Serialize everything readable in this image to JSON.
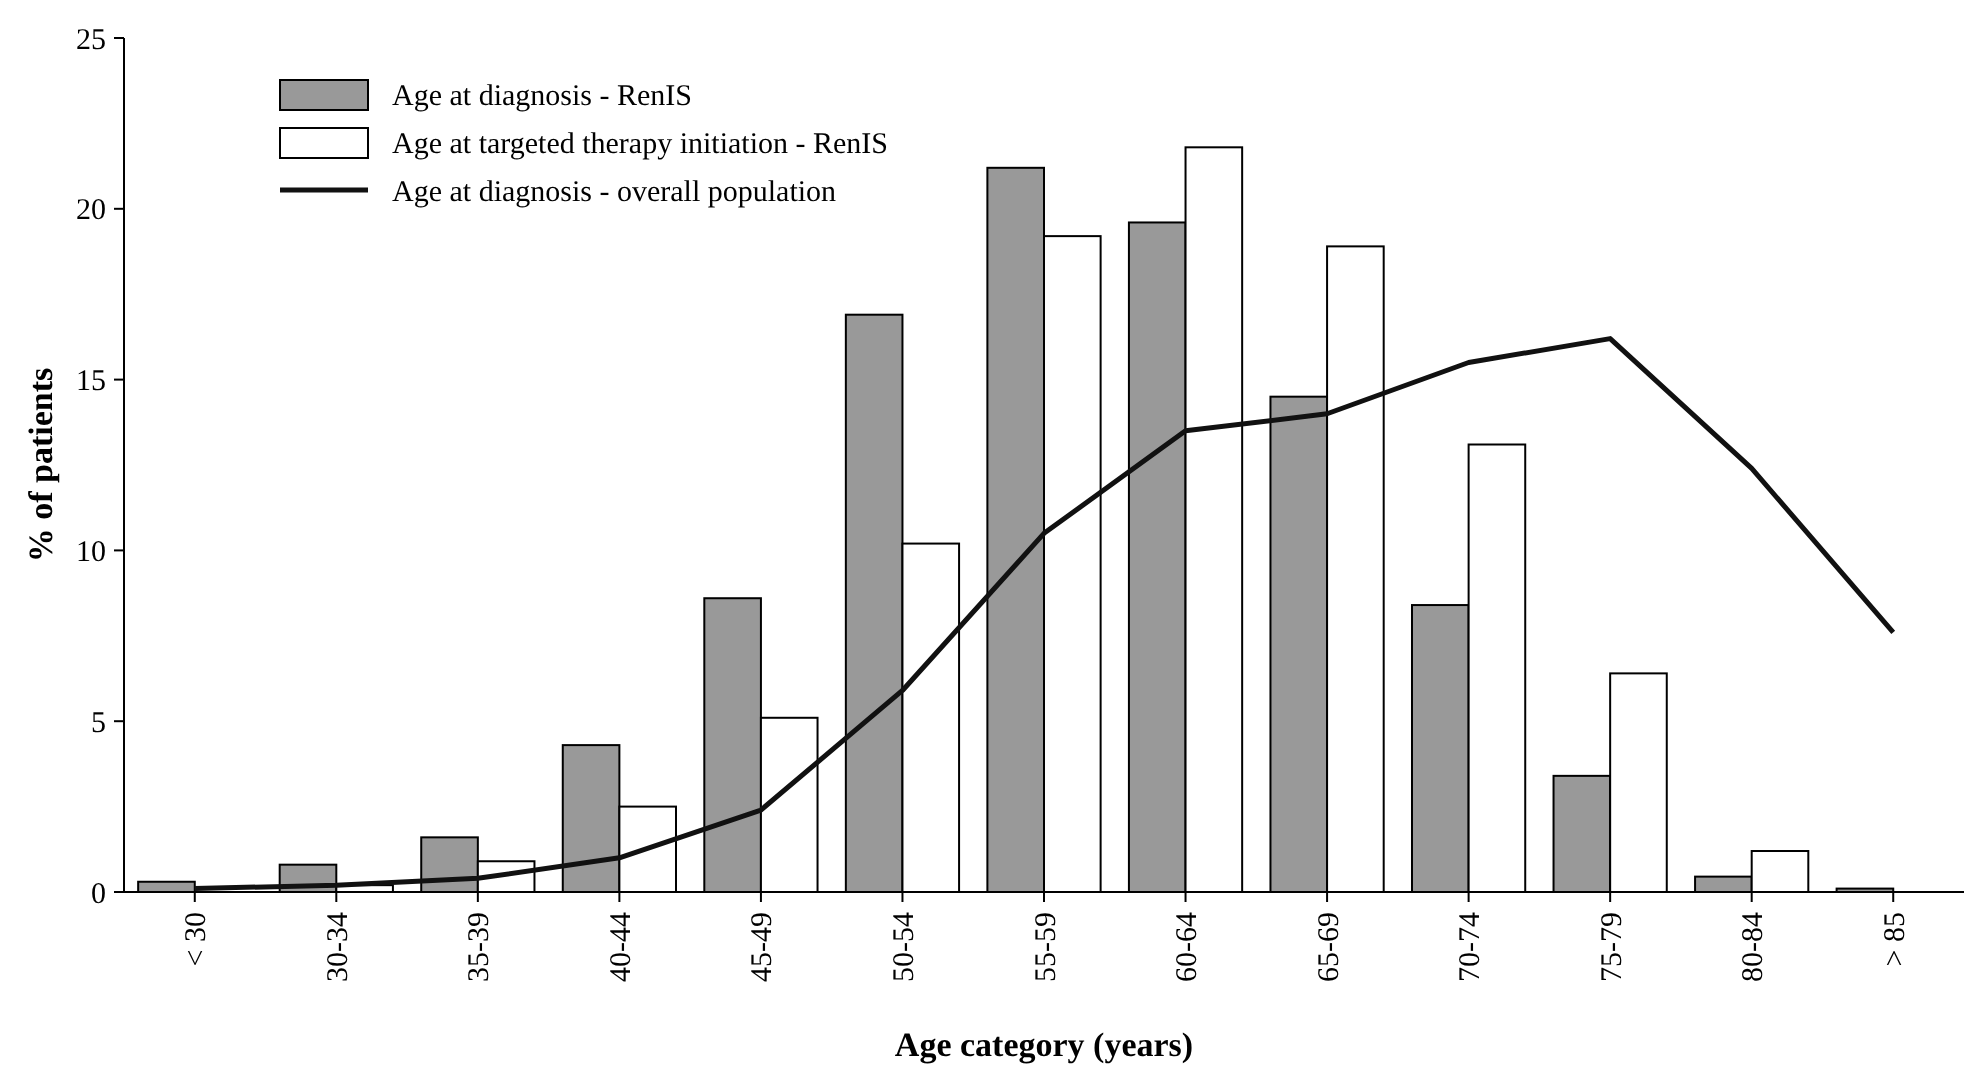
{
  "chart_data": {
    "type": "bar",
    "xlabel": "Age category (years)",
    "ylabel": "% of patients",
    "categories": [
      "< 30",
      "30-34",
      "35-39",
      "40-44",
      "45-49",
      "50-54",
      "55-59",
      "60-64",
      "65-69",
      "70-74",
      "75-79",
      "80-84",
      "> 85"
    ],
    "series": [
      {
        "name": "Age at diagnosis - RenIS",
        "color": "#999999",
        "values": [
          0.3,
          0.8,
          1.6,
          4.3,
          8.6,
          16.9,
          21.2,
          19.6,
          14.5,
          8.4,
          3.4,
          0.45,
          0.1
        ]
      },
      {
        "name": "Age at targeted therapy initiation - RenIS",
        "color": "#ffffff",
        "values": [
          null,
          0.2,
          0.9,
          2.5,
          5.1,
          10.2,
          19.2,
          21.8,
          18.9,
          13.1,
          6.4,
          1.2,
          null
        ]
      },
      {
        "name": "Age at diagnosis - overall population",
        "type": "line",
        "color": "#111111",
        "values": [
          0.1,
          0.2,
          0.4,
          1.0,
          2.4,
          5.9,
          10.5,
          13.5,
          14.0,
          15.5,
          16.2,
          12.4,
          7.6
        ]
      }
    ],
    "ylim": [
      0,
      25
    ],
    "yticks": [
      0,
      5,
      10,
      15,
      20,
      25
    ],
    "grid": false,
    "legend": "top left",
    "marker": "none",
    "line_style": "solid"
  }
}
